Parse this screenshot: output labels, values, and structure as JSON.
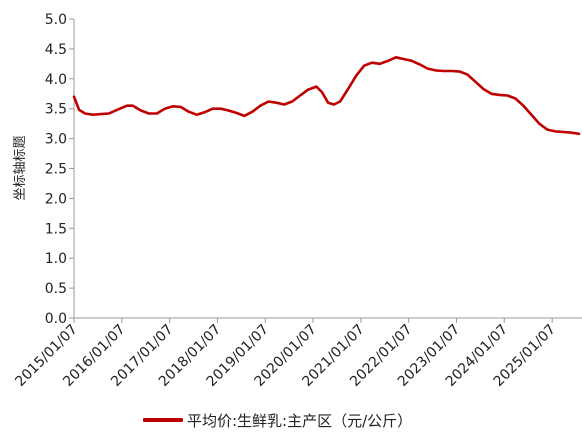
{
  "chart_data": {
    "type": "line",
    "ylabel": "坐标轴标题",
    "xlabel": "",
    "ylim": [
      0,
      5
    ],
    "yticks": [
      "0.0",
      "0.5",
      "1.0",
      "1.5",
      "2.0",
      "2.5",
      "3.0",
      "3.5",
      "4.0",
      "4.5",
      "5.0"
    ],
    "xticks": [
      "2015/01/07",
      "2016/01/07",
      "2017/01/07",
      "2018/01/07",
      "2019/01/07",
      "2020/01/07",
      "2021/01/07",
      "2022/01/07",
      "2023/01/07",
      "2024/01/07",
      "2025/01/07"
    ],
    "grid": false,
    "legend_position": "bottom",
    "color": "#C00000",
    "series": [
      {
        "name": "平均价:生鲜乳:主产区（元/公斤）",
        "points": [
          [
            "2015-01-07",
            3.7
          ],
          [
            "2015-02-15",
            3.48
          ],
          [
            "2015-04-01",
            3.42
          ],
          [
            "2015-06-01",
            3.4
          ],
          [
            "2015-08-01",
            3.41
          ],
          [
            "2015-10-01",
            3.42
          ],
          [
            "2015-12-01",
            3.48
          ],
          [
            "2016-02-15",
            3.55
          ],
          [
            "2016-04-01",
            3.55
          ],
          [
            "2016-06-01",
            3.47
          ],
          [
            "2016-08-01",
            3.42
          ],
          [
            "2016-10-01",
            3.42
          ],
          [
            "2016-12-01",
            3.5
          ],
          [
            "2017-02-01",
            3.54
          ],
          [
            "2017-04-01",
            3.53
          ],
          [
            "2017-06-01",
            3.45
          ],
          [
            "2017-08-01",
            3.4
          ],
          [
            "2017-10-01",
            3.44
          ],
          [
            "2017-12-01",
            3.5
          ],
          [
            "2018-02-01",
            3.5
          ],
          [
            "2018-04-01",
            3.47
          ],
          [
            "2018-06-01",
            3.43
          ],
          [
            "2018-08-01",
            3.38
          ],
          [
            "2018-10-01",
            3.45
          ],
          [
            "2018-12-01",
            3.55
          ],
          [
            "2019-02-01",
            3.62
          ],
          [
            "2019-04-01",
            3.6
          ],
          [
            "2019-06-01",
            3.57
          ],
          [
            "2019-08-01",
            3.62
          ],
          [
            "2019-10-01",
            3.72
          ],
          [
            "2019-12-01",
            3.82
          ],
          [
            "2020-02-01",
            3.87
          ],
          [
            "2020-03-15",
            3.78
          ],
          [
            "2020-05-01",
            3.6
          ],
          [
            "2020-06-15",
            3.57
          ],
          [
            "2020-08-01",
            3.62
          ],
          [
            "2020-10-01",
            3.83
          ],
          [
            "2020-12-01",
            4.05
          ],
          [
            "2021-02-01",
            4.22
          ],
          [
            "2021-04-01",
            4.27
          ],
          [
            "2021-06-01",
            4.25
          ],
          [
            "2021-08-01",
            4.3
          ],
          [
            "2021-10-01",
            4.36
          ],
          [
            "2021-12-01",
            4.33
          ],
          [
            "2022-02-01",
            4.3
          ],
          [
            "2022-04-01",
            4.24
          ],
          [
            "2022-06-01",
            4.17
          ],
          [
            "2022-08-01",
            4.14
          ],
          [
            "2022-10-01",
            4.13
          ],
          [
            "2022-12-01",
            4.13
          ],
          [
            "2023-02-01",
            4.12
          ],
          [
            "2023-04-01",
            4.07
          ],
          [
            "2023-06-01",
            3.95
          ],
          [
            "2023-08-01",
            3.83
          ],
          [
            "2023-10-01",
            3.75
          ],
          [
            "2023-12-01",
            3.73
          ],
          [
            "2024-02-01",
            3.72
          ],
          [
            "2024-04-01",
            3.67
          ],
          [
            "2024-06-01",
            3.55
          ],
          [
            "2024-08-01",
            3.4
          ],
          [
            "2024-10-01",
            3.25
          ],
          [
            "2024-12-01",
            3.15
          ],
          [
            "2025-02-01",
            3.12
          ],
          [
            "2025-04-01",
            3.11
          ],
          [
            "2025-06-01",
            3.1
          ],
          [
            "2025-07-31",
            3.08
          ]
        ]
      }
    ]
  }
}
